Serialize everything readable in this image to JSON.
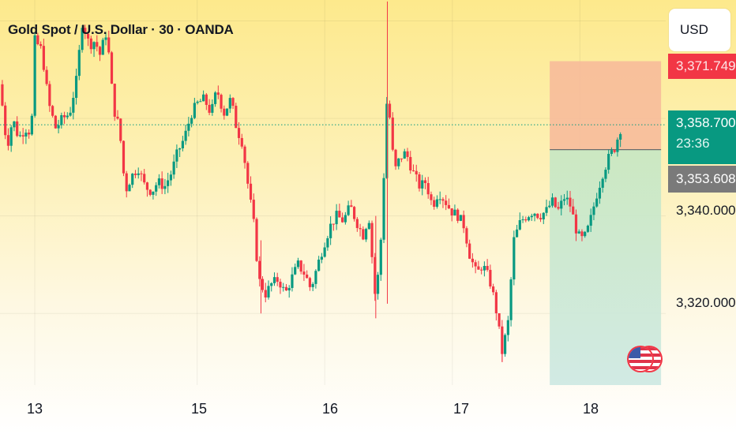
{
  "title": "Gold Spot / U.S. Dollar · 30 · OANDA",
  "currency_button": "USD",
  "price_tags": {
    "stop": "3,371.749",
    "last_price": "3,358.700",
    "countdown": "23:36",
    "entry": "3,353.608"
  },
  "colors": {
    "up": "#089981",
    "down": "#f23645",
    "stop_zone": "#f7b89a",
    "target_zone": "#bfe4c8",
    "last_price_line": "#089981"
  },
  "icons": [
    "us-flag-icon"
  ],
  "chart_data": {
    "type": "candlestick",
    "title": "Gold Spot / U.S. Dollar · 30 · OANDA",
    "symbol": "Gold Spot / U.S. Dollar",
    "interval": "30",
    "source": "OANDA",
    "currency": "USD",
    "y_tick_labels": [
      "3,340.000",
      "3,320.000"
    ],
    "y_ticks": [
      3340,
      3320
    ],
    "ylim": [
      3305.3,
      3384.3
    ],
    "x_tick_labels": [
      "13",
      "15",
      "16",
      "17",
      "18"
    ],
    "x_tick_positions": [
      3,
      17,
      28,
      39,
      50
    ],
    "xlim": [
      0,
      57.4
    ],
    "last_price": 3358.7,
    "countdown": "23:36",
    "position": {
      "type": "short",
      "entry": 3353.608,
      "stop": 3371.749,
      "target": 3305.3,
      "start_x": 47.4,
      "end_x": 57.0
    },
    "grid": true,
    "price_path": [
      [
        0.0,
        3367
      ],
      [
        0.6,
        3354
      ],
      [
        1.1,
        3360
      ],
      [
        1.6,
        3356
      ],
      [
        2.2,
        3358
      ],
      [
        2.7,
        3357
      ],
      [
        3.0,
        3376
      ],
      [
        3.6,
        3374
      ],
      [
        4.2,
        3363
      ],
      [
        4.8,
        3358
      ],
      [
        5.4,
        3360
      ],
      [
        6.0,
        3361
      ],
      [
        6.6,
        3368
      ],
      [
        7.1,
        3380
      ],
      [
        7.7,
        3375
      ],
      [
        8.2,
        3376
      ],
      [
        8.6,
        3373
      ],
      [
        9.2,
        3378
      ],
      [
        9.8,
        3362
      ],
      [
        10.3,
        3358
      ],
      [
        10.8,
        3345
      ],
      [
        11.3,
        3348
      ],
      [
        11.9,
        3350
      ],
      [
        12.5,
        3346
      ],
      [
        13.1,
        3345
      ],
      [
        13.6,
        3347
      ],
      [
        14.2,
        3346
      ],
      [
        14.8,
        3349
      ],
      [
        15.3,
        3353
      ],
      [
        15.9,
        3356
      ],
      [
        16.5,
        3361
      ],
      [
        17.0,
        3363
      ],
      [
        17.6,
        3364
      ],
      [
        18.2,
        3361
      ],
      [
        18.7,
        3366
      ],
      [
        19.3,
        3361
      ],
      [
        19.9,
        3364
      ],
      [
        20.4,
        3358
      ],
      [
        20.9,
        3355
      ],
      [
        21.4,
        3346
      ],
      [
        21.9,
        3338
      ],
      [
        22.3,
        3327
      ],
      [
        22.9,
        3324
      ],
      [
        23.4,
        3326
      ],
      [
        24.0,
        3327
      ],
      [
        24.6,
        3324
      ],
      [
        25.1,
        3327
      ],
      [
        25.7,
        3330
      ],
      [
        26.3,
        3328
      ],
      [
        26.8,
        3325
      ],
      [
        27.4,
        3330
      ],
      [
        27.9,
        3334
      ],
      [
        28.5,
        3338
      ],
      [
        29.0,
        3340
      ],
      [
        29.6,
        3339
      ],
      [
        30.2,
        3342
      ],
      [
        30.7,
        3339
      ],
      [
        31.3,
        3336
      ],
      [
        31.8,
        3340
      ],
      [
        32.4,
        3322
      ],
      [
        32.9,
        3337
      ],
      [
        33.4,
        3366
      ],
      [
        34.0,
        3349
      ],
      [
        34.5,
        3352
      ],
      [
        35.0,
        3353
      ],
      [
        35.6,
        3349
      ],
      [
        36.2,
        3346
      ],
      [
        36.7,
        3347
      ],
      [
        37.3,
        3342
      ],
      [
        37.8,
        3345
      ],
      [
        38.4,
        3343
      ],
      [
        38.9,
        3341
      ],
      [
        39.5,
        3340
      ],
      [
        40.0,
        3338
      ],
      [
        40.5,
        3332
      ],
      [
        41.1,
        3328
      ],
      [
        41.6,
        3330
      ],
      [
        42.2,
        3327
      ],
      [
        42.7,
        3322
      ],
      [
        43.3,
        3312
      ],
      [
        43.8,
        3318
      ],
      [
        44.3,
        3335
      ],
      [
        44.9,
        3339
      ],
      [
        45.4,
        3340
      ],
      [
        46.0,
        3341
      ],
      [
        46.5,
        3340
      ],
      [
        47.1,
        3341
      ],
      [
        47.6,
        3343
      ],
      [
        48.1,
        3341
      ],
      [
        48.7,
        3344
      ],
      [
        49.2,
        3342
      ],
      [
        49.8,
        3336
      ],
      [
        50.3,
        3335
      ],
      [
        50.8,
        3338
      ],
      [
        51.4,
        3344
      ],
      [
        52.0,
        3349
      ],
      [
        52.5,
        3352
      ],
      [
        53.0,
        3354
      ],
      [
        53.6,
        3358.7
      ]
    ]
  }
}
